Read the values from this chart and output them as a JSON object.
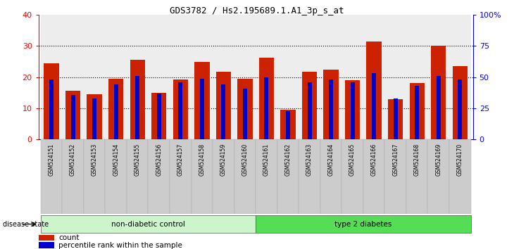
{
  "title": "GDS3782 / Hs2.195689.1.A1_3p_s_at",
  "samples": [
    "GSM524151",
    "GSM524152",
    "GSM524153",
    "GSM524154",
    "GSM524155",
    "GSM524156",
    "GSM524157",
    "GSM524158",
    "GSM524159",
    "GSM524160",
    "GSM524161",
    "GSM524162",
    "GSM524163",
    "GSM524164",
    "GSM524165",
    "GSM524166",
    "GSM524167",
    "GSM524168",
    "GSM524169",
    "GSM524170"
  ],
  "count_values": [
    24.5,
    15.7,
    14.5,
    19.5,
    25.5,
    15.0,
    19.3,
    25.0,
    21.7,
    19.5,
    26.2,
    9.5,
    21.7,
    22.5,
    19.0,
    31.5,
    13.0,
    18.2,
    30.0,
    23.5
  ],
  "percentile_values": [
    48.0,
    36.0,
    33.0,
    44.0,
    51.0,
    37.0,
    46.0,
    49.0,
    44.0,
    41.0,
    50.0,
    23.0,
    46.0,
    48.0,
    46.0,
    53.0,
    33.0,
    43.0,
    51.0,
    48.0
  ],
  "non_diabetic_count": 10,
  "bar_color_red": "#cc2200",
  "bar_color_blue": "#0000cc",
  "ylim_left": [
    0,
    40
  ],
  "ylim_right": [
    0,
    100
  ],
  "yticks_left": [
    0,
    10,
    20,
    30,
    40
  ],
  "yticks_right": [
    0,
    25,
    50,
    75,
    100
  ],
  "yticklabels_right": [
    "0",
    "25",
    "50",
    "75",
    "100%"
  ],
  "group_labels": [
    "non-diabetic control",
    "type 2 diabetes"
  ],
  "group_color_nd": "#ccf5cc",
  "group_color_t2d": "#55dd55",
  "background_color": "#ffffff",
  "legend_count_label": "count",
  "legend_percentile_label": "percentile rank within the sample",
  "disease_state_label": "disease state"
}
